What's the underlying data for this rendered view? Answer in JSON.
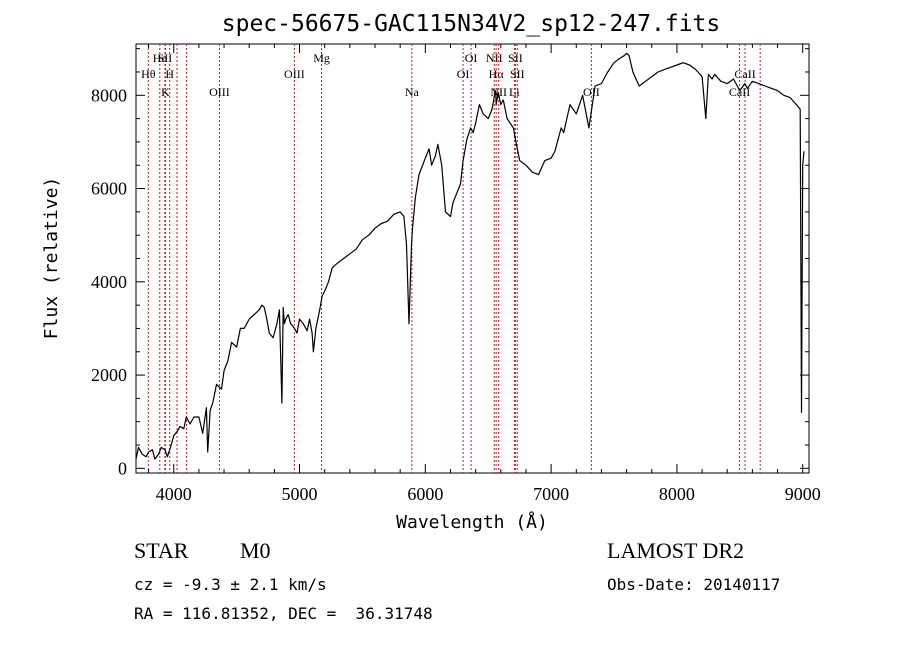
{
  "chart_data": {
    "type": "line",
    "title": "spec-56675-GAC115N34V2_sp12-247.fits",
    "xlabel": "Wavelength (Å)",
    "ylabel": "Flux (relative)",
    "xlim": [
      3700,
      9050
    ],
    "ylim": [
      -100,
      9100
    ],
    "xticks": [
      4000,
      5000,
      6000,
      7000,
      8000,
      9000
    ],
    "yticks": [
      0,
      2000,
      4000,
      6000,
      8000
    ],
    "grid": false,
    "series": [
      {
        "color": "#000000",
        "x": [
          3700,
          3720,
          3750,
          3780,
          3800,
          3830,
          3850,
          3880,
          3900,
          3930,
          3950,
          3980,
          4000,
          4030,
          4050,
          4080,
          4100,
          4130,
          4160,
          4200,
          4230,
          4260,
          4270,
          4290,
          4310,
          4340,
          4380,
          4400,
          4430,
          4460,
          4500,
          4530,
          4560,
          4600,
          4640,
          4680,
          4700,
          4720,
          4740,
          4760,
          4790,
          4820,
          4840,
          4860,
          4870,
          4880,
          4890,
          4910,
          4930,
          4960,
          4980,
          5000,
          5030,
          5060,
          5080,
          5100,
          5110,
          5130,
          5160,
          5180,
          5200,
          5230,
          5260,
          5300,
          5350,
          5400,
          5450,
          5500,
          5550,
          5600,
          5650,
          5700,
          5750,
          5800,
          5830,
          5850,
          5870,
          5890,
          5895,
          5900,
          5920,
          5950,
          6000,
          6030,
          6050,
          6080,
          6100,
          6130,
          6160,
          6200,
          6220,
          6250,
          6280,
          6300,
          6330,
          6360,
          6380,
          6400,
          6430,
          6460,
          6500,
          6530,
          6550,
          6560,
          6563,
          6580,
          6600,
          6620,
          6650,
          6700,
          6720,
          6750,
          6800,
          6850,
          6900,
          6950,
          7000,
          7030,
          7050,
          7080,
          7100,
          7150,
          7200,
          7250,
          7300,
          7350,
          7400,
          7450,
          7500,
          7550,
          7580,
          7600,
          7620,
          7650,
          7700,
          7750,
          7800,
          7850,
          7900,
          7950,
          8000,
          8050,
          8100,
          8150,
          8200,
          8230,
          8250,
          8280,
          8300,
          8350,
          8400,
          8450,
          8500,
          8540,
          8560,
          8600,
          8650,
          8700,
          8750,
          8800,
          8850,
          8900,
          8950,
          8980,
          8990,
          9000,
          9010
        ],
        "y": [
          200,
          450,
          300,
          250,
          350,
          400,
          200,
          300,
          450,
          400,
          250,
          500,
          700,
          800,
          900,
          850,
          1100,
          950,
          1100,
          1100,
          750,
          1300,
          350,
          1250,
          1400,
          1800,
          1700,
          2100,
          2300,
          2700,
          2600,
          3000,
          3000,
          3200,
          3300,
          3400,
          3500,
          3450,
          3200,
          2900,
          2800,
          3100,
          3400,
          1400,
          3450,
          3100,
          3200,
          3300,
          3100,
          3000,
          2900,
          3200,
          3100,
          2950,
          3200,
          2900,
          2500,
          3000,
          3400,
          3700,
          3800,
          4000,
          4300,
          4400,
          4500,
          4600,
          4700,
          4900,
          5000,
          5150,
          5250,
          5300,
          5450,
          5500,
          5400,
          4800,
          3100,
          4800,
          5000,
          5200,
          5800,
          6300,
          6650,
          6850,
          6500,
          6700,
          6950,
          6500,
          5500,
          5400,
          5700,
          5900,
          6100,
          6600,
          7050,
          7300,
          7200,
          7400,
          7800,
          7600,
          7500,
          7700,
          8000,
          8100,
          7800,
          8050,
          7800,
          7900,
          7500,
          7300,
          7000,
          6600,
          6500,
          6350,
          6300,
          6600,
          6650,
          6800,
          7000,
          7300,
          7200,
          7800,
          7600,
          8000,
          7300,
          8200,
          8250,
          8500,
          8700,
          8800,
          8850,
          8900,
          8850,
          8500,
          8200,
          8300,
          8400,
          8500,
          8550,
          8600,
          8650,
          8700,
          8650,
          8550,
          8400,
          7500,
          8450,
          8350,
          8450,
          8300,
          8250,
          8350,
          8100,
          8250,
          8150,
          8300,
          8250,
          8200,
          8150,
          8100,
          8000,
          7950,
          7800,
          7700,
          1200,
          6500,
          6800
        ]
      }
    ],
    "line_markers": [
      {
        "label": "Hθ",
        "x": 3798,
        "row": 2
      },
      {
        "label": "He",
        "x": 3889,
        "row": 1
      },
      {
        "label": "SII",
        "x": 3930,
        "row": 1
      },
      {
        "label": "H",
        "x": 3968,
        "row": 2
      },
      {
        "label": "K",
        "x": 3934,
        "row": 3
      },
      {
        "label": "",
        "x": 4026,
        "row": 0
      },
      {
        "label": "",
        "x": 4102,
        "row": 0
      },
      {
        "label": "OIII",
        "x": 4363,
        "row": 3
      },
      {
        "label": "OIII",
        "x": 4959,
        "row": 2
      },
      {
        "label": "Mg",
        "x": 5175,
        "row": 1
      },
      {
        "label": "Na",
        "x": 5893,
        "row": 3
      },
      {
        "label": "OI",
        "x": 6300,
        "row": 2
      },
      {
        "label": "OI",
        "x": 6364,
        "row": 1
      },
      {
        "label": "NII",
        "x": 6548,
        "row": 1
      },
      {
        "label": "Hα",
        "x": 6563,
        "row": 2
      },
      {
        "label": "NII",
        "x": 6583,
        "row": 3
      },
      {
        "label": "SII",
        "x": 6716,
        "row": 1
      },
      {
        "label": "Li",
        "x": 6708,
        "row": 3
      },
      {
        "label": "SII",
        "x": 6731,
        "row": 2
      },
      {
        "label": "OII",
        "x": 7320,
        "row": 3
      },
      {
        "label": "CaII",
        "x": 8542,
        "row": 2
      },
      {
        "label": "CaII",
        "x": 8498,
        "row": 3
      },
      {
        "label": "",
        "x": 8662,
        "row": 0
      }
    ]
  },
  "info": {
    "object_class": "STAR",
    "subclass": "M0",
    "survey": "LAMOST DR2",
    "redshift": "cz = -9.3 ± 2.1 km/s",
    "obs_date": "Obs-Date: 20140117",
    "coords": "RA = 116.81352, DEC =  36.31748"
  }
}
